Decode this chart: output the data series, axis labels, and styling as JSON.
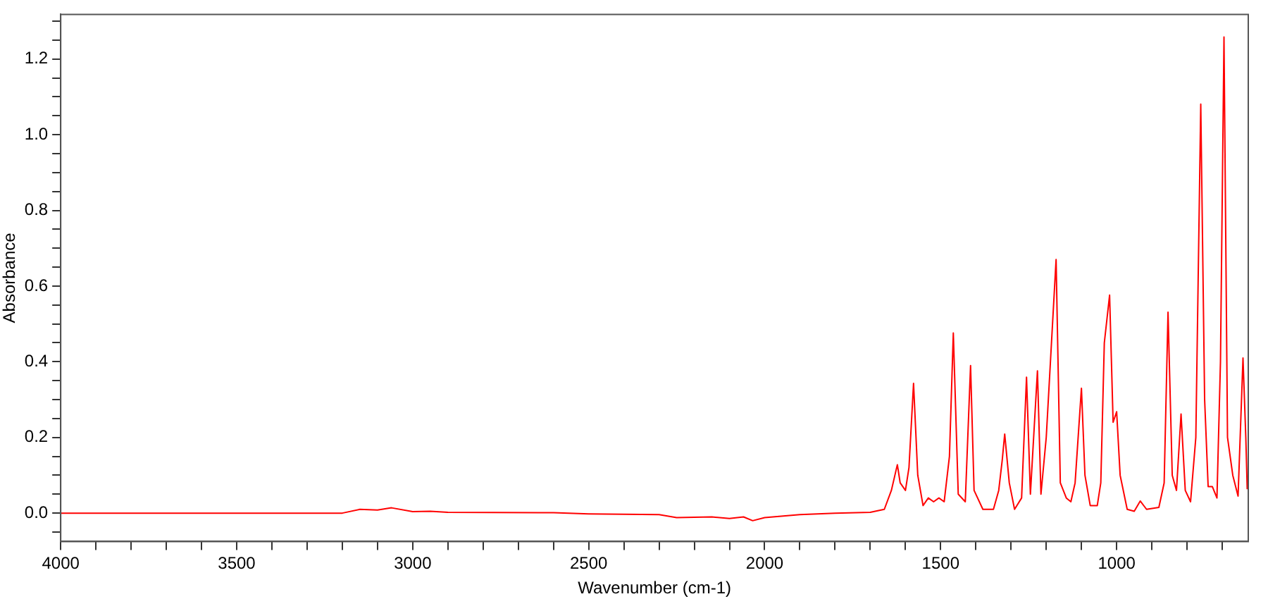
{
  "chart_data": {
    "type": "line",
    "xlabel": "Wavenumber (cm-1)",
    "ylabel": "Absorbance",
    "x": [
      4000,
      3700,
      3200,
      3150,
      3100,
      3060,
      3000,
      2950,
      2900,
      2600,
      2500,
      2300,
      2250,
      2150,
      2100,
      2060,
      2034,
      2000,
      1900,
      1800,
      1700,
      1660,
      1640,
      1623,
      1615,
      1600,
      1590,
      1577,
      1565,
      1550,
      1535,
      1520,
      1505,
      1490,
      1475,
      1464,
      1450,
      1430,
      1415,
      1405,
      1380,
      1350,
      1335,
      1325,
      1318,
      1305,
      1290,
      1270,
      1256,
      1245,
      1225,
      1215,
      1200,
      1172,
      1160,
      1143,
      1130,
      1118,
      1100,
      1090,
      1075,
      1055,
      1045,
      1035,
      1020,
      1010,
      1000,
      990,
      970,
      950,
      933,
      915,
      880,
      865,
      854,
      842,
      830,
      817,
      805,
      790,
      775,
      761,
      750,
      740,
      728,
      715,
      705,
      695,
      685,
      670,
      655,
      641,
      633,
      629
    ],
    "series": [
      {
        "color": "#ff0000",
        "values": [
          0,
          0,
          0,
          0.01,
          0.008,
          0.014,
          0.004,
          0.005,
          0.002,
          0.001,
          -0.002,
          -0.004,
          -0.012,
          -0.01,
          -0.014,
          -0.01,
          -0.02,
          -0.012,
          -0.004,
          0,
          0.002,
          0.01,
          0.06,
          0.128,
          0.08,
          0.06,
          0.12,
          0.343,
          0.1,
          0.02,
          0.04,
          0.03,
          0.04,
          0.03,
          0.15,
          0.476,
          0.05,
          0.03,
          0.39,
          0.06,
          0.01,
          0.01,
          0.06,
          0.14,
          0.209,
          0.08,
          0.01,
          0.04,
          0.359,
          0.05,
          0.376,
          0.05,
          0.2,
          0.67,
          0.08,
          0.04,
          0.03,
          0.08,
          0.33,
          0.1,
          0.02,
          0.02,
          0.08,
          0.45,
          0.576,
          0.24,
          0.268,
          0.1,
          0.01,
          0.005,
          0.032,
          0.01,
          0.015,
          0.08,
          0.531,
          0.1,
          0.06,
          0.262,
          0.06,
          0.03,
          0.2,
          1.081,
          0.3,
          0.07,
          0.07,
          0.04,
          0.4,
          1.258,
          0.2,
          0.1,
          0.045,
          0.41,
          0.2,
          0.063
        ]
      }
    ],
    "xlim": [
      4000,
      626
    ],
    "xticks": [
      4000,
      {
        "value": 3900,
        "label": null
      },
      {
        "value": 3800,
        "label": null
      },
      {
        "value": 3700,
        "label": null
      },
      {
        "value": 3600,
        "label": null
      },
      3500,
      {
        "value": 3400,
        "label": null
      },
      {
        "value": 3300,
        "label": null
      },
      {
        "value": 3200,
        "label": null
      },
      {
        "value": 3100,
        "label": null
      },
      3000,
      {
        "value": 2900,
        "label": null
      },
      {
        "value": 2800,
        "label": null
      },
      {
        "value": 2700,
        "label": null
      },
      {
        "value": 2600,
        "label": null
      },
      2500,
      {
        "value": 2400,
        "label": null
      },
      {
        "value": 2300,
        "label": null
      },
      {
        "value": 2200,
        "label": null
      },
      {
        "value": 2100,
        "label": null
      },
      2000,
      {
        "value": 1900,
        "label": null
      },
      {
        "value": 1800,
        "label": null
      },
      {
        "value": 1700,
        "label": null
      },
      {
        "value": 1600,
        "label": null
      },
      1500,
      {
        "value": 1400,
        "label": null
      },
      {
        "value": 1300,
        "label": null
      },
      {
        "value": 1200,
        "label": null
      },
      {
        "value": 1100,
        "label": null
      },
      1000,
      {
        "value": 900,
        "label": null
      },
      {
        "value": 800,
        "label": null
      },
      {
        "value": 700,
        "label": null
      }
    ],
    "ylim": [
      -0.075,
      1.318
    ],
    "yticks": [
      {
        "value": -0.05,
        "label": null
      },
      {
        "value": 0,
        "label": "0.0"
      },
      {
        "value": 0.05,
        "label": null
      },
      {
        "value": 0.1,
        "label": null
      },
      {
        "value": 0.15,
        "label": null
      },
      0.2,
      {
        "value": 0.25,
        "label": null
      },
      {
        "value": 0.3,
        "label": null
      },
      {
        "value": 0.35,
        "label": null
      },
      0.4,
      {
        "value": 0.45,
        "label": null
      },
      {
        "value": 0.5,
        "label": null
      },
      {
        "value": 0.55,
        "label": null
      },
      0.6,
      {
        "value": 0.65,
        "label": null
      },
      {
        "value": 0.7,
        "label": null
      },
      {
        "value": 0.75,
        "label": null
      },
      0.8,
      {
        "value": 0.85,
        "label": null
      },
      {
        "value": 0.9,
        "label": null
      },
      {
        "value": 0.95,
        "label": null
      },
      {
        "value": 1,
        "label": "1.0"
      },
      {
        "value": 1.05,
        "label": null
      },
      {
        "value": 1.1,
        "label": null
      },
      {
        "value": 1.15,
        "label": null
      },
      1.2,
      {
        "value": 1.25,
        "label": null
      },
      {
        "value": 1.3,
        "label": null
      }
    ],
    "grid": false,
    "legend": false,
    "marker": "none",
    "line_style": "solid"
  }
}
